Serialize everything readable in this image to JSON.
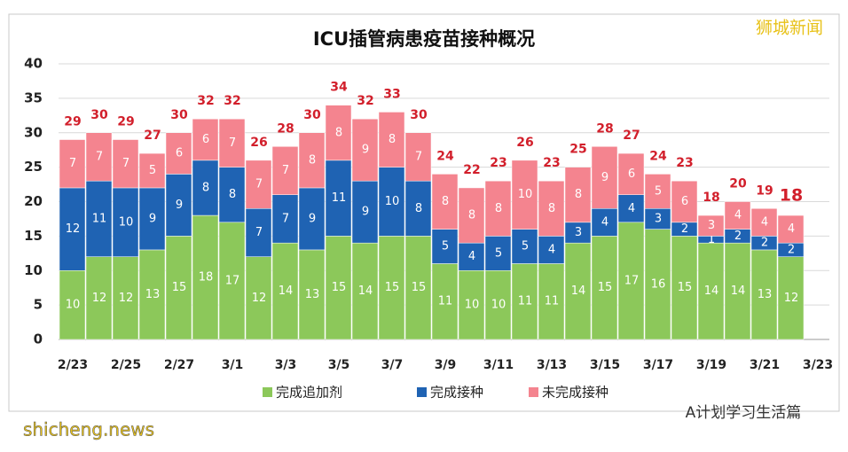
{
  "chart_data": {
    "type": "stacked_bar",
    "title": "ICU插管病患疫苗接种概况",
    "xticks": [
      "2/23",
      "2/25",
      "2/27",
      "3/1",
      "3/3",
      "3/5",
      "3/7",
      "3/9",
      "3/11",
      "3/13",
      "3/15",
      "3/17",
      "3/19",
      "3/21",
      "3/23"
    ],
    "ylim": [
      0,
      40
    ],
    "yticks": [
      0,
      5,
      10,
      15,
      20,
      25,
      30,
      35,
      40
    ],
    "grid": true,
    "series": [
      {
        "name": "完成追加剂",
        "color": "#8cc85a",
        "values": [
          10,
          12,
          12,
          13,
          15,
          18,
          17,
          12,
          14,
          13,
          15,
          14,
          15,
          15,
          11,
          10,
          10,
          11,
          11,
          14,
          15,
          17,
          16,
          15,
          14,
          14,
          13,
          12
        ]
      },
      {
        "name": "完成接种",
        "color": "#1f63b3",
        "values": [
          12,
          11,
          10,
          9,
          9,
          8,
          8,
          7,
          7,
          9,
          11,
          9,
          10,
          8,
          5,
          4,
          5,
          5,
          4,
          3,
          4,
          4,
          3,
          2,
          1,
          2,
          2,
          2
        ]
      },
      {
        "name": "未完成接种",
        "color": "#f4848f",
        "values": [
          7,
          7,
          7,
          5,
          6,
          6,
          7,
          7,
          7,
          8,
          8,
          9,
          8,
          7,
          8,
          8,
          8,
          10,
          8,
          8,
          9,
          6,
          5,
          6,
          3,
          4,
          4,
          4
        ]
      }
    ],
    "totals": [
      29,
      30,
      29,
      27,
      30,
      32,
      32,
      26,
      28,
      30,
      34,
      32,
      33,
      30,
      24,
      22,
      23,
      26,
      23,
      25,
      28,
      27,
      24,
      23,
      18,
      20,
      19,
      18
    ],
    "total_color": "#d21f2b",
    "watermarks": [
      "狮城新闻",
      "A计划学习生活篇",
      "shicheng.news"
    ]
  }
}
